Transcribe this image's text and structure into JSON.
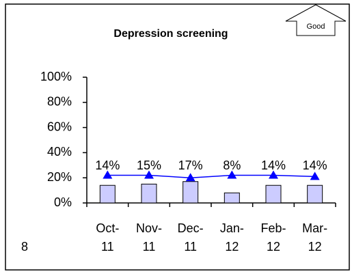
{
  "chart_data": {
    "type": "bar",
    "title": "Depression screening",
    "categories": [
      "Oct-11",
      "Nov-11",
      "Dec-11",
      "Jan-12",
      "Feb-12",
      "Mar-12"
    ],
    "series": [
      {
        "type": "bar",
        "color": "#ccccff",
        "values": [
          14,
          15,
          17,
          8,
          14,
          14
        ],
        "value_labels": [
          "14%",
          "15%",
          "17%",
          "8%",
          "14%",
          "14%"
        ]
      },
      {
        "type": "line",
        "color": "#0000ff",
        "values": [
          22,
          22,
          20,
          22,
          22,
          21
        ]
      }
    ],
    "ylim": [
      0,
      100
    ],
    "yticks": [
      {
        "value": 0,
        "label": "0%"
      },
      {
        "value": 20,
        "label": "20%"
      },
      {
        "value": 40,
        "label": "40%"
      },
      {
        "value": 60,
        "label": "60%"
      },
      {
        "value": 80,
        "label": "80%"
      },
      {
        "value": 100,
        "label": "100%"
      }
    ],
    "annotation": "Good",
    "page_number": "8"
  }
}
